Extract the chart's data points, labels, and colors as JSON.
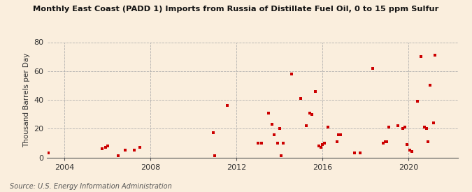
{
  "title": "Monthly East Coast (PADD 1) Imports from Russia of Distillate Fuel Oil, 0 to 15 ppm Sulfur",
  "ylabel": "Thousand Barrels per Day",
  "source": "Source: U.S. Energy Information Administration",
  "background_color": "#faeedd",
  "marker_color": "#cc0000",
  "marker_size": 12,
  "xlim_start": 2003.2,
  "xlim_end": 2022.3,
  "ylim": [
    0,
    80
  ],
  "yticks": [
    0,
    20,
    40,
    60,
    80
  ],
  "xticks": [
    2004,
    2008,
    2012,
    2016,
    2020
  ],
  "data_points": [
    [
      2003.25,
      3
    ],
    [
      2005.75,
      6
    ],
    [
      2005.92,
      7
    ],
    [
      2006.0,
      8
    ],
    [
      2006.5,
      1
    ],
    [
      2006.83,
      5
    ],
    [
      2007.25,
      5
    ],
    [
      2007.5,
      7
    ],
    [
      2010.92,
      17
    ],
    [
      2011.0,
      1
    ],
    [
      2011.58,
      36
    ],
    [
      2013.0,
      10
    ],
    [
      2013.17,
      10
    ],
    [
      2013.5,
      31
    ],
    [
      2013.67,
      23
    ],
    [
      2013.75,
      16
    ],
    [
      2013.92,
      10
    ],
    [
      2014.0,
      20
    ],
    [
      2014.08,
      1
    ],
    [
      2014.17,
      10
    ],
    [
      2014.58,
      58
    ],
    [
      2015.0,
      41
    ],
    [
      2015.25,
      22
    ],
    [
      2015.42,
      31
    ],
    [
      2015.5,
      30
    ],
    [
      2015.67,
      46
    ],
    [
      2015.83,
      8
    ],
    [
      2015.92,
      7
    ],
    [
      2016.0,
      9
    ],
    [
      2016.08,
      10
    ],
    [
      2016.25,
      21
    ],
    [
      2016.67,
      11
    ],
    [
      2016.75,
      16
    ],
    [
      2016.83,
      16
    ],
    [
      2017.5,
      3
    ],
    [
      2017.75,
      3
    ],
    [
      2018.33,
      62
    ],
    [
      2018.83,
      10
    ],
    [
      2018.92,
      11
    ],
    [
      2019.0,
      11
    ],
    [
      2019.08,
      21
    ],
    [
      2019.5,
      22
    ],
    [
      2019.75,
      20
    ],
    [
      2019.83,
      21
    ],
    [
      2019.92,
      9
    ],
    [
      2020.08,
      5
    ],
    [
      2020.17,
      4
    ],
    [
      2020.42,
      39
    ],
    [
      2020.58,
      70
    ],
    [
      2020.75,
      21
    ],
    [
      2020.83,
      20
    ],
    [
      2020.92,
      11
    ],
    [
      2021.0,
      50
    ],
    [
      2021.17,
      24
    ],
    [
      2021.25,
      71
    ]
  ]
}
